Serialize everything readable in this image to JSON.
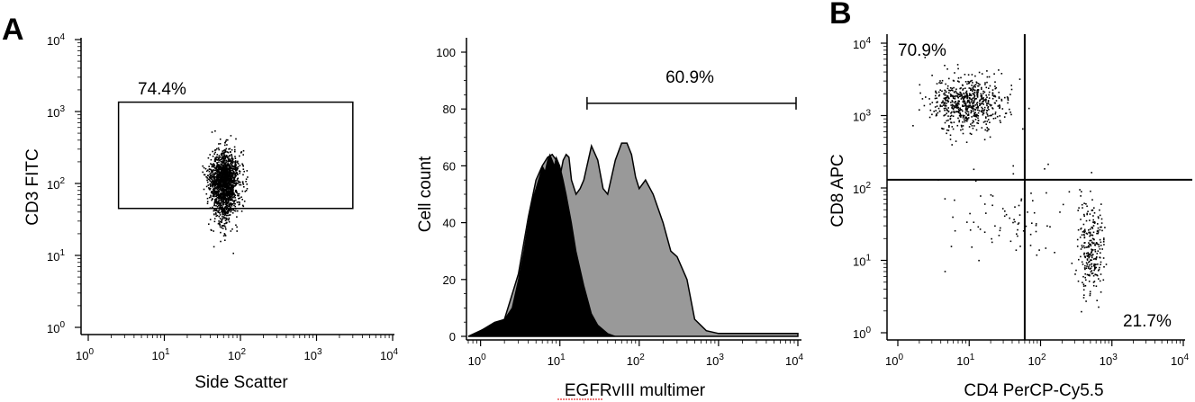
{
  "colors": {
    "axis": "#000000",
    "dots": "#000000",
    "histogram_control_fill": "#000000",
    "histogram_stained_fill": "#999999"
  },
  "chart_data": [
    {
      "type": "scatter",
      "panel_label": "A",
      "xlabel": "Side Scatter",
      "ylabel": "CD3 FITC",
      "x_scale": "log",
      "y_scale": "log",
      "xlim": [
        1,
        10000
      ],
      "ylim": [
        1,
        10000
      ],
      "x_ticks": [
        {
          "value": 1,
          "base": "10",
          "exp": "0"
        },
        {
          "value": 10,
          "base": "10",
          "exp": "1"
        },
        {
          "value": 100,
          "base": "10",
          "exp": "2"
        },
        {
          "value": 1000,
          "base": "10",
          "exp": "3"
        },
        {
          "value": 10000,
          "base": "10",
          "exp": "4"
        }
      ],
      "y_ticks": [
        {
          "value": 1,
          "base": "10",
          "exp": "0"
        },
        {
          "value": 10,
          "base": "10",
          "exp": "1"
        },
        {
          "value": 100,
          "base": "10",
          "exp": "2"
        },
        {
          "value": 1000,
          "base": "10",
          "exp": "3"
        },
        {
          "value": 10000,
          "base": "10",
          "exp": "4"
        }
      ],
      "gate": {
        "x_range": [
          2.5,
          3000
        ],
        "y_range": [
          45,
          1350
        ],
        "label": "74.4%"
      },
      "population": {
        "center_x": 60,
        "center_y": 90,
        "count": 1800
      }
    },
    {
      "type": "area",
      "xlabel": "EGFRvIII multimer",
      "ylabel": "Cell count",
      "x_scale": "log",
      "xlim": [
        0.7,
        10000
      ],
      "ylim": [
        0,
        100
      ],
      "x_ticks": [
        {
          "value": 1,
          "base": "10",
          "exp": "0"
        },
        {
          "value": 10,
          "base": "10",
          "exp": "1"
        },
        {
          "value": 100,
          "base": "10",
          "exp": "2"
        },
        {
          "value": 1000,
          "base": "10",
          "exp": "3"
        },
        {
          "value": 10000,
          "base": "10",
          "exp": "4"
        }
      ],
      "y_ticks": [
        0,
        20,
        40,
        60,
        80,
        100
      ],
      "gate": {
        "x_range": [
          22,
          10000
        ],
        "y": 82,
        "label": "60.9%"
      },
      "series": [
        {
          "role": "control",
          "x": [
            0.7,
            1,
            1.5,
            2,
            2.5,
            3,
            3.5,
            4,
            4.5,
            5,
            5.5,
            6,
            6.5,
            7,
            7.5,
            8,
            8.5,
            9,
            10,
            11,
            12,
            14,
            16,
            20,
            25,
            30,
            40,
            50
          ],
          "values": [
            0,
            2,
            5,
            6,
            10,
            20,
            30,
            40,
            48,
            52,
            56,
            60,
            58,
            62,
            64,
            62,
            60,
            63,
            60,
            55,
            50,
            40,
            30,
            18,
            8,
            4,
            1,
            0
          ]
        },
        {
          "role": "stained",
          "x": [
            0.7,
            1,
            2,
            3,
            4,
            5,
            6,
            7,
            8,
            9,
            10,
            11,
            12,
            13,
            14,
            16,
            18,
            20,
            25,
            30,
            35,
            40,
            50,
            60,
            70,
            80,
            90,
            100,
            120,
            150,
            200,
            250,
            300,
            400,
            500,
            700,
            1000,
            10000
          ],
          "values": [
            0,
            2,
            6,
            22,
            42,
            55,
            60,
            63,
            64,
            62,
            56,
            62,
            64,
            63,
            55,
            50,
            52,
            55,
            67,
            62,
            52,
            50,
            62,
            68,
            68,
            64,
            56,
            52,
            55,
            50,
            40,
            30,
            28,
            20,
            6,
            2,
            1,
            1
          ]
        }
      ]
    },
    {
      "type": "scatter",
      "panel_label": "B",
      "xlabel": "CD4 PerCP-Cy5.5",
      "ylabel": "CD8 APC",
      "x_scale": "log",
      "y_scale": "log",
      "xlim": [
        1,
        10000
      ],
      "ylim": [
        1,
        10000
      ],
      "x_ticks": [
        {
          "value": 1,
          "base": "10",
          "exp": "0"
        },
        {
          "value": 10,
          "base": "10",
          "exp": "1"
        },
        {
          "value": 100,
          "base": "10",
          "exp": "2"
        },
        {
          "value": 1000,
          "base": "10",
          "exp": "3"
        },
        {
          "value": 10000,
          "base": "10",
          "exp": "4"
        }
      ],
      "y_ticks": [
        {
          "value": 1,
          "base": "10",
          "exp": "0"
        },
        {
          "value": 10,
          "base": "10",
          "exp": "1"
        },
        {
          "value": 100,
          "base": "10",
          "exp": "2"
        },
        {
          "value": 1000,
          "base": "10",
          "exp": "3"
        },
        {
          "value": 10000,
          "base": "10",
          "exp": "4"
        }
      ],
      "quadrant": {
        "x": 60,
        "y": 130
      },
      "quadrant_labels": {
        "upper_left": "70.9%",
        "lower_right": "21.7%"
      },
      "populations": [
        {
          "center_x": 9,
          "center_y": 1500,
          "count": 650
        },
        {
          "center_x": 500,
          "center_y": 15,
          "count": 260
        },
        {
          "center_x": 35,
          "center_y": 40,
          "count": 80
        }
      ]
    }
  ]
}
